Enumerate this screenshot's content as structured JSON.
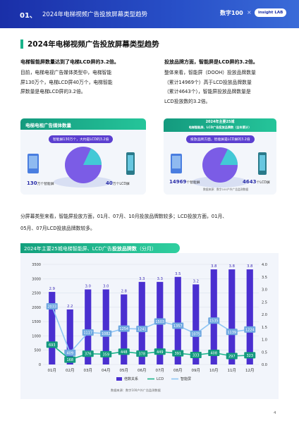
{
  "header": {
    "number": "01、",
    "title": "2024年电梯视频广告投放屏幕类型趋势",
    "logo_main": "数字100",
    "logo_sep": "×",
    "logo_partner": "insight LAB"
  },
  "main_title": "2024年电梯视频广告投放屏幕类型趋势",
  "left_col": {
    "title": "电梯智能屏数量达到了电梯LCD屏的3.2倍。",
    "lines": [
      "目前，电梯电视广告媒体类型中，电梯智能",
      "屏130万个，电梯LCD屏40万个，电梯智能",
      "屏数量是电梯LCD屏的3.2倍。"
    ]
  },
  "right_col": {
    "title": "投放品牌方面，智能屏是LCD屏的3.2倍。",
    "lines": [
      "整体来看，智能屏（DOOH）投放品牌数量",
      "（累计14969个）高于LCD投放品牌数量",
      "（累计4643个），智能屏投放品牌数量是",
      "LCD投放数的3.2倍。"
    ]
  },
  "card_left": {
    "head": "电梯电视广告媒体数量",
    "pill": "智能屏130万个，大约是LCD的3.2倍",
    "num_left": "130",
    "num_left_unit": "万个智能屏",
    "num_right": "40",
    "num_right_unit": "万个LCD屏"
  },
  "card_right": {
    "head_line1": "2024年主要25城",
    "head_line2": "电梯智能屏、LCD广告投放品牌数（全年累计）",
    "pill": "投放品牌方面，智能屏是LCD屏的3.2倍",
    "num_left": "14969",
    "num_left_unit": "个智能屏",
    "num_right": "4643",
    "num_right_unit": "个LCD屏",
    "source": "数据来源：数字100户外广告监测数据"
  },
  "summary": {
    "line1": "分屏幕类型来看，智能屏投放方面，01月、07月、10月投放品牌数较多；LCD投放方面，01月、",
    "line2": "05月、07月LCD投放品牌数较多。"
  },
  "chart_title_prefix": "2024年主要25城电梯智能屏、LCD广告",
  "chart_title_bold": "投放品牌数",
  "chart_title_suffix": "（分月）",
  "chart_data": {
    "type": "bar",
    "categories": [
      "01月",
      "02月",
      "03月",
      "04月",
      "05月",
      "06月",
      "07月",
      "08月",
      "09月",
      "10月",
      "11月",
      "12月"
    ],
    "y_left_ticks": [
      "0",
      "500",
      "1000",
      "1500",
      "2000",
      "2500",
      "3000",
      "3500"
    ],
    "y_right_ticks": [
      "0.0",
      "0.5",
      "1.0",
      "1.5",
      "2.0",
      "2.5",
      "3.0",
      "3.5",
      "4.0"
    ],
    "ylim_left": [
      0,
      3500
    ],
    "ylim_right": [
      0,
      4.0
    ],
    "series": [
      {
        "name": "倍数关系",
        "type": "bar",
        "axis": "right",
        "values": [
          2.9,
          2.2,
          3.0,
          3.0,
          2.8,
          3.3,
          3.3,
          3.5,
          3.2,
          3.8,
          3.8,
          3.8
        ],
        "labels": [
          "2.9",
          "2.2",
          "3.0",
          "3.0",
          "2.8",
          "3.3",
          "3.3",
          "3.5",
          "3.2",
          "3.8",
          "3.8",
          "3.8"
        ]
      },
      {
        "name": "LCD",
        "type": "line",
        "axis": "left",
        "values": [
          693,
          168,
          376,
          359,
          448,
          378,
          449,
          391,
          333,
          408,
          297,
          323
        ],
        "labels": [
          "693",
          "168",
          "376",
          "359",
          "448",
          "378",
          "449",
          "391",
          "333",
          "408",
          "297",
          "323"
        ]
      },
      {
        "name": "智能屏",
        "type": "line",
        "axis": "left",
        "values": [
          2033,
          409,
          1117,
          1082,
          1254,
          1241,
          1503,
          1357,
          1075,
          1535,
          1139,
          1224
        ],
        "labels": [
          "2033",
          "409",
          "1117",
          "1082",
          "1254",
          "1241",
          "1503",
          "1357",
          "1075",
          "1535",
          "1139",
          "1224"
        ]
      }
    ],
    "colors": {
      "bar": "#4a2fd0",
      "lcd": "#1bb58a",
      "smart": "#8fc6f5"
    },
    "legend": [
      "倍数关系",
      "LCD",
      "智能屏"
    ],
    "source": "数据来源：数字100户外广告监测数据"
  },
  "page_number": "4"
}
